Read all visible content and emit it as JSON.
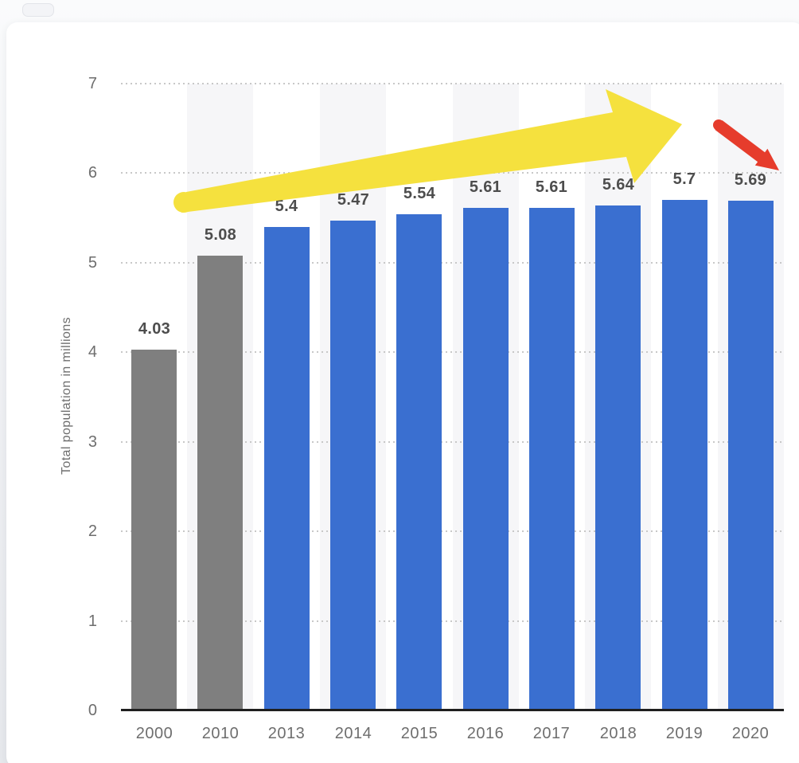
{
  "page": {
    "background_color": "#e9ebef",
    "card_color": "#ffffff"
  },
  "chart_data": {
    "type": "bar",
    "categories": [
      "2000",
      "2010",
      "2013",
      "2014",
      "2015",
      "2016",
      "2017",
      "2018",
      "2019",
      "2020"
    ],
    "values": [
      4.03,
      5.08,
      5.4,
      5.47,
      5.54,
      5.61,
      5.61,
      5.64,
      5.7,
      5.69
    ],
    "value_labels": [
      "4.03",
      "5.08",
      "5.4",
      "5.47",
      "5.54",
      "5.61",
      "5.61",
      "5.64",
      "5.7",
      "5.69"
    ],
    "bar_colors": [
      "#7F7F7F",
      "#7F7F7F",
      "#3A6FD0",
      "#3A6FD0",
      "#3A6FD0",
      "#3A6FD0",
      "#3A6FD0",
      "#3A6FD0",
      "#3A6FD0",
      "#3A6FD0"
    ],
    "title": "",
    "xlabel": "",
    "ylabel": "Total population in millions",
    "ylim": [
      0,
      7
    ],
    "y_ticks": [
      "0",
      "1",
      "2",
      "3",
      "4",
      "5",
      "6",
      "7"
    ],
    "grid": "dotted horizontal gridlines at each integer",
    "legend": "none",
    "column_banding": "alternate light-gray background stripes behind 2010, 2014, 2016, 2018, 2020 columns",
    "annotations": [
      {
        "type": "arrow",
        "name": "upward-trend-arrow",
        "color": "#F5E13E",
        "direction": "up-right",
        "spans": "from above 2010 bar to above 2019 bar",
        "meaning": "rising population trend 2010-2019"
      },
      {
        "type": "arrow",
        "name": "downward-arrow",
        "color": "#E63C2C",
        "direction": "down-right",
        "spans": "pointing down toward 2020 bar",
        "meaning": "slight decline in 2020"
      }
    ],
    "style": {
      "stripe_color": "#f6f6f8",
      "gridline_color": "#c8c8c8",
      "axis_line_color": "#1f1f1f",
      "tick_label_color": "#6e6e6e",
      "x_label_color": "#6e6e6e",
      "value_label_color": "#4d4d4d",
      "y_title_color": "#6e6e6e"
    }
  }
}
